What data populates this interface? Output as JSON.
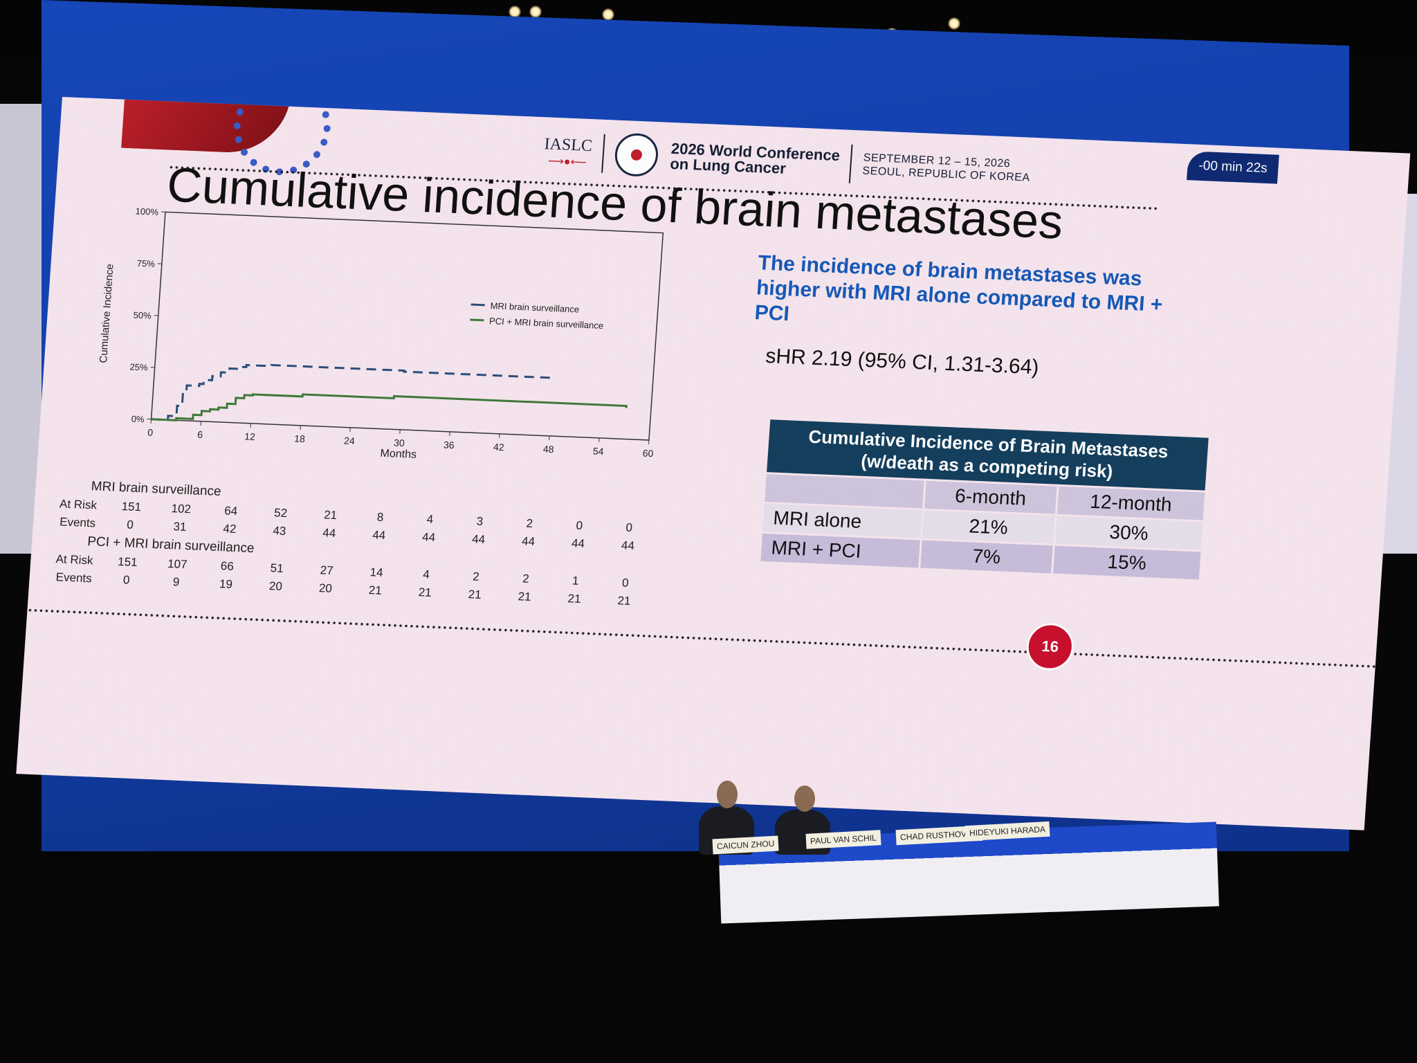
{
  "header": {
    "org": "IASLC",
    "conference_line1": "2026 World Conference",
    "conference_line2": "on Lung Cancer",
    "dates_line1": "SEPTEMBER 12 – 15, 2026",
    "dates_line2": "SEOUL, REPUBLIC OF KOREA",
    "timer": "-00 min 22s"
  },
  "slide_title": "Cumulative incidence of brain metastases",
  "finding": "The incidence of brain metastases was higher with MRI alone compared to MRI + PCI",
  "shr": "sHR 2.19 (95% CI, 1.31-3.64)",
  "page_number": "16",
  "ci_table": {
    "title_line1": "Cumulative Incidence of Brain Metastases",
    "title_line2": "(w/death as a competing risk)",
    "columns": [
      "",
      "6-month",
      "12-month"
    ],
    "rows": [
      {
        "group": "MRI alone",
        "m6": "21%",
        "m12": "30%"
      },
      {
        "group": "MRI + PCI",
        "m6": "7%",
        "m12": "15%"
      }
    ]
  },
  "risk_table": {
    "group1_title": "MRI brain surveillance",
    "group2_title": "PCI + MRI brain surveillance",
    "at_risk_label": "At Risk",
    "events_label": "Events",
    "group1_at_risk": [
      "151",
      "102",
      "64",
      "52",
      "21",
      "8",
      "4",
      "3",
      "2",
      "0",
      "0"
    ],
    "group1_events": [
      "0",
      "31",
      "42",
      "43",
      "44",
      "44",
      "44",
      "44",
      "44",
      "44",
      "44"
    ],
    "group2_at_risk": [
      "151",
      "107",
      "66",
      "51",
      "27",
      "14",
      "4",
      "2",
      "2",
      "1",
      "0"
    ],
    "group2_events": [
      "0",
      "9",
      "19",
      "20",
      "20",
      "21",
      "21",
      "21",
      "21",
      "21",
      "21"
    ]
  },
  "panel": {
    "names": [
      "CAICUN ZHOU",
      "PAUL VAN SCHIL",
      "CHAD RUSTHOVEN",
      "HIDEYUKI HARADA"
    ]
  },
  "chart_data": {
    "type": "line",
    "title": "",
    "xlabel": "Months",
    "ylabel": "Cumulative Incidence",
    "xlim": [
      0,
      60
    ],
    "ylim": [
      0,
      1
    ],
    "x_ticks": [
      "0",
      "6",
      "12",
      "18",
      "24",
      "30",
      "36",
      "42",
      "48",
      "54",
      "60"
    ],
    "y_ticks": [
      "0%",
      "25%",
      "50%",
      "75%",
      "100%"
    ],
    "legend_position": "center-right",
    "grid": false,
    "series": [
      {
        "name": "MRI brain surveillance",
        "style": "dashed",
        "color": "#2b4f7a",
        "points": [
          [
            0,
            0
          ],
          [
            1,
            0
          ],
          [
            2,
            0.02
          ],
          [
            3,
            0.07
          ],
          [
            3.6,
            0.14
          ],
          [
            4,
            0.17
          ],
          [
            5.5,
            0.18
          ],
          [
            6,
            0.2
          ],
          [
            7,
            0.22
          ],
          [
            8,
            0.24
          ],
          [
            9,
            0.26
          ],
          [
            10,
            0.27
          ],
          [
            11,
            0.28
          ],
          [
            12,
            0.28
          ],
          [
            14,
            0.285
          ],
          [
            30,
            0.28
          ],
          [
            48,
            0.27
          ]
        ]
      },
      {
        "name": "PCI + MRI brain surveillance",
        "style": "solid",
        "color": "#3f7a3a",
        "points": [
          [
            0,
            0
          ],
          [
            2,
            0
          ],
          [
            3,
            0.01
          ],
          [
            5,
            0.03
          ],
          [
            6,
            0.05
          ],
          [
            7,
            0.06
          ],
          [
            8,
            0.07
          ],
          [
            9,
            0.09
          ],
          [
            10,
            0.12
          ],
          [
            11,
            0.135
          ],
          [
            12,
            0.14
          ],
          [
            18,
            0.15
          ],
          [
            28,
            0.15
          ],
          [
            29,
            0.16
          ],
          [
            57,
            0.15
          ]
        ]
      }
    ]
  }
}
